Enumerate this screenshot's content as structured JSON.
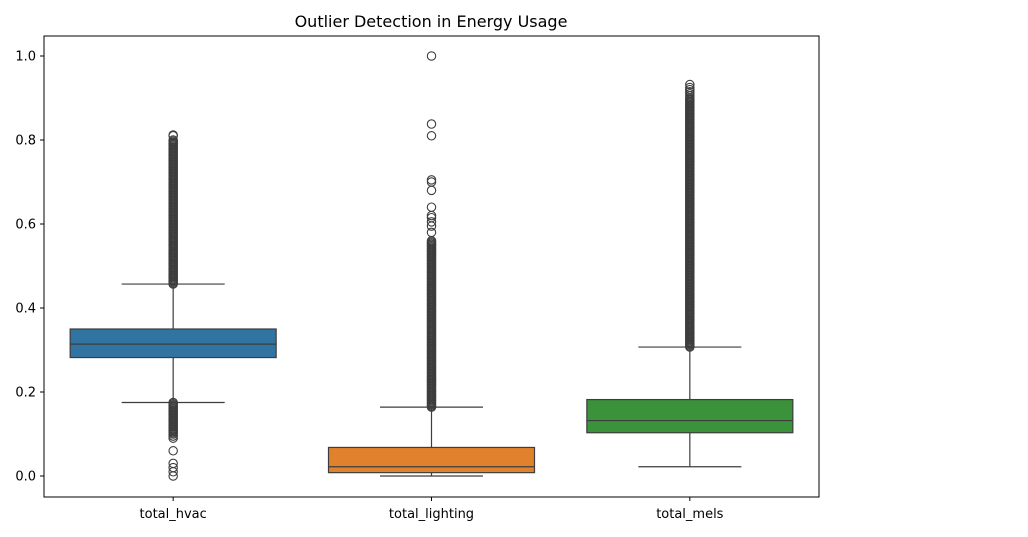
{
  "chart_data": {
    "type": "box",
    "title": "Outlier Detection in Energy Usage",
    "xlabel": "",
    "ylabel": "",
    "categories": [
      "total_hvac",
      "total_lighting",
      "total_mels"
    ],
    "ylim": [
      -0.05,
      1.05
    ],
    "yticks": [
      0.0,
      0.2,
      0.4,
      0.6,
      0.8,
      1.0
    ],
    "ytick_labels": [
      "0.0",
      "0.2",
      "0.4",
      "0.6",
      "0.8",
      "1.0"
    ],
    "grid": false,
    "series": [
      {
        "category": "total_hvac",
        "color": "#3274a1",
        "whisker_low": 0.175,
        "q1": 0.282,
        "median": 0.314,
        "q3": 0.35,
        "whisker_high": 0.457,
        "outliers_dense": [
          [
            0.1,
            0.175
          ],
          [
            0.457,
            0.8
          ]
        ],
        "outliers": [
          0.0,
          0.01,
          0.02,
          0.03,
          0.06,
          0.09,
          0.095,
          0.81,
          0.812
        ]
      },
      {
        "category": "total_lighting",
        "color": "#e1812c",
        "whisker_low": 0.0,
        "q1": 0.008,
        "median": 0.022,
        "q3": 0.068,
        "whisker_high": 0.164,
        "outliers_dense": [
          [
            0.164,
            0.56
          ]
        ],
        "outliers": [
          0.58,
          0.595,
          0.605,
          0.615,
          0.62,
          0.64,
          0.68,
          0.7,
          0.705,
          0.81,
          0.838,
          1.0
        ]
      },
      {
        "category": "total_mels",
        "color": "#3a923a",
        "whisker_low": 0.022,
        "q1": 0.103,
        "median": 0.132,
        "q3": 0.182,
        "whisker_high": 0.307,
        "outliers_dense": [
          [
            0.307,
            0.9
          ]
        ],
        "outliers": [
          0.905,
          0.91,
          0.915,
          0.92,
          0.925,
          0.932
        ]
      }
    ]
  }
}
